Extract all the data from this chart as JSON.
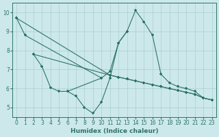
{
  "xlabel": "Humidex (Indice chaleur)",
  "xlim": [
    -0.5,
    23.5
  ],
  "ylim": [
    4.5,
    10.5
  ],
  "yticks": [
    5,
    6,
    7,
    8,
    9,
    10
  ],
  "xticks": [
    0,
    1,
    2,
    3,
    4,
    5,
    6,
    7,
    8,
    9,
    10,
    11,
    12,
    13,
    14,
    15,
    16,
    17,
    18,
    19,
    20,
    21,
    22,
    23
  ],
  "bg_color": "#cce8ea",
  "grid_color": "#aacdd2",
  "line_color": "#2d7368",
  "lines": [
    {
      "x": [
        0,
        1,
        10,
        11,
        12,
        13,
        14,
        15,
        16,
        17,
        18,
        19,
        20,
        21,
        22,
        23
      ],
      "y": [
        9.7,
        8.8,
        6.55,
        6.9,
        8.4,
        9.0,
        10.1,
        9.5,
        8.8,
        6.75,
        6.3,
        6.1,
        6.0,
        5.85,
        5.5,
        5.4
      ]
    },
    {
      "x": [
        2,
        3,
        4,
        5,
        6,
        10
      ],
      "y": [
        7.8,
        7.15,
        6.05,
        5.85,
        5.85,
        6.55
      ]
    },
    {
      "x": [
        6,
        7,
        8,
        9,
        10,
        11,
        12,
        13
      ],
      "y": [
        5.85,
        5.6,
        5.0,
        4.7,
        5.3,
        6.55,
        8.4,
        9.0
      ]
    },
    {
      "x": [
        2,
        11,
        12,
        13,
        14,
        15,
        16,
        17,
        18,
        19,
        20,
        21,
        22,
        23
      ],
      "y": [
        7.8,
        6.7,
        6.6,
        6.5,
        6.4,
        6.3,
        6.2,
        6.1,
        6.0,
        5.9,
        5.8,
        5.7,
        5.5,
        5.4
      ]
    },
    {
      "x": [
        0,
        11,
        12,
        13,
        14,
        15,
        16,
        17,
        18,
        19,
        20,
        21,
        22,
        23
      ],
      "y": [
        9.7,
        6.7,
        6.6,
        6.5,
        6.4,
        6.3,
        6.2,
        6.1,
        6.0,
        5.9,
        5.8,
        5.7,
        5.5,
        5.4
      ]
    }
  ]
}
